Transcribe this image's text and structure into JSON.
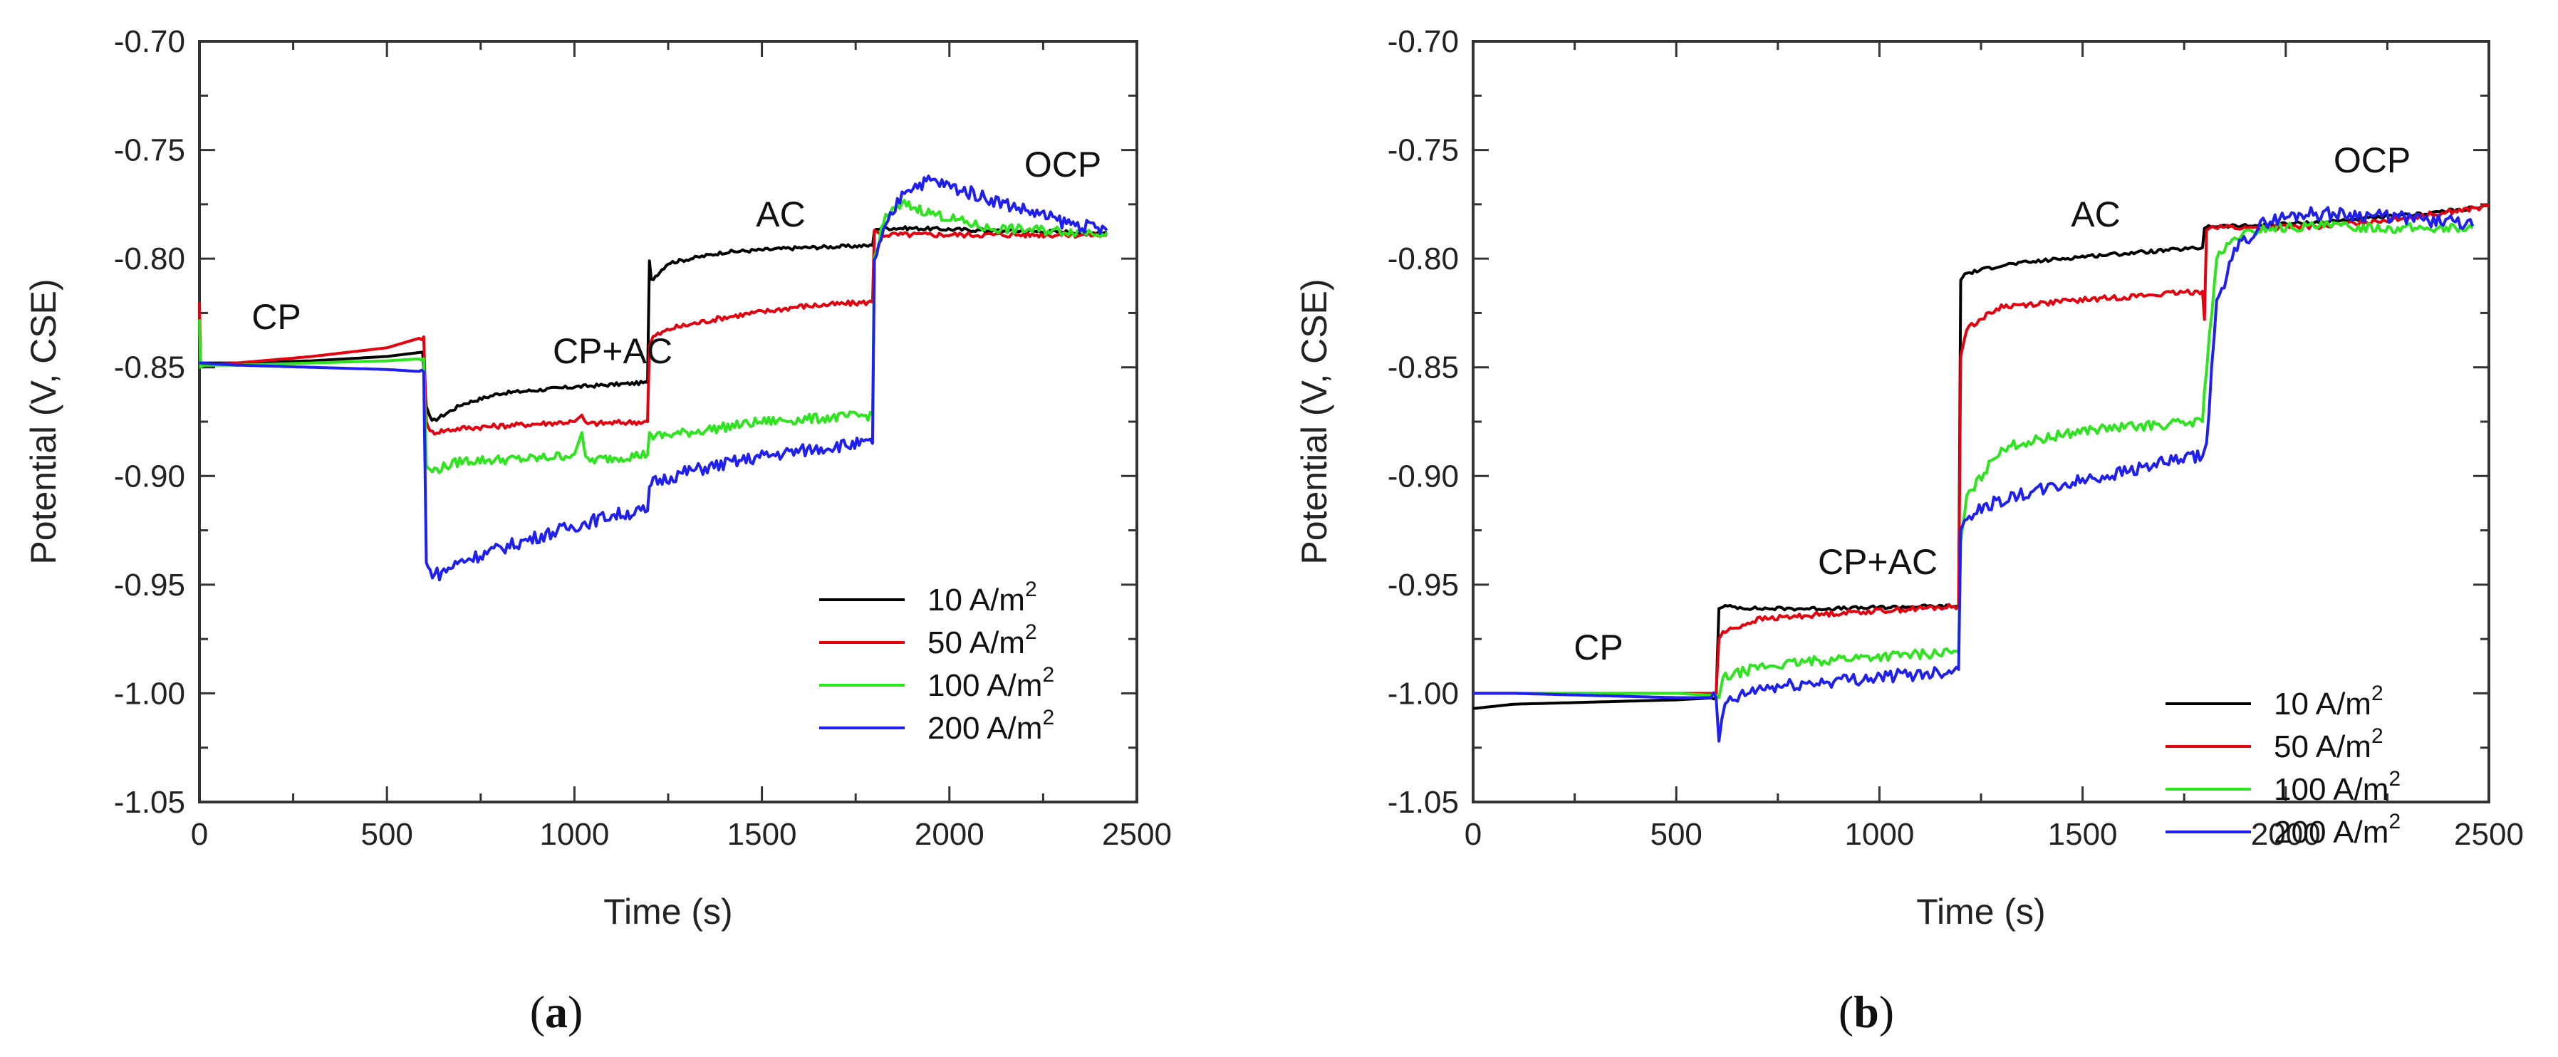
{
  "chart_data": [
    {
      "type": "line",
      "panel": "a",
      "panel_label": {
        "open": "(",
        "letter": "a",
        "close": ")"
      },
      "xlabel": "Time (s)",
      "ylabel": "Potential (V, CSE)",
      "xlim": [
        0,
        2500
      ],
      "ylim": [
        -1.05,
        -0.7
      ],
      "xticks": [
        0,
        500,
        1000,
        1500,
        2000,
        2500
      ],
      "xtick_labels": [
        "0",
        "500",
        "1000",
        "1500",
        "2000",
        "2500"
      ],
      "yticks": [
        -0.7,
        -0.75,
        -0.8,
        -0.85,
        -0.9,
        -0.95,
        -1.0,
        -1.05
      ],
      "ytick_labels": [
        "-0.70",
        "-0.75",
        "-0.80",
        "-0.85",
        "-0.90",
        "-0.95",
        "-1.00",
        "-1.05"
      ],
      "annotations": [
        {
          "text": "CP",
          "x": 300,
          "y": -0.828
        },
        {
          "text": "CP+AC",
          "x": 900,
          "y": -0.845
        },
        {
          "text": "AC",
          "x": 1500,
          "y": -0.774
        },
        {
          "text": "OCP",
          "x": 2050,
          "y": -0.757
        }
      ],
      "legend": {
        "position": "bottom-right",
        "superscript": "2"
      },
      "series": [
        {
          "name": "10 A/m",
          "color": "#000000",
          "x": [
            0,
            100,
            300,
            500,
            595,
            605,
            620,
            700,
            800,
            1000,
            1195,
            1200,
            1205,
            1250,
            1400,
            1600,
            1795,
            1800,
            1810,
            1900,
            2100,
            2420
          ],
          "y": [
            -0.848,
            -0.848,
            -0.847,
            -0.845,
            -0.843,
            -0.868,
            -0.875,
            -0.867,
            -0.862,
            -0.859,
            -0.857,
            -0.801,
            -0.81,
            -0.802,
            -0.797,
            -0.795,
            -0.794,
            -0.787,
            -0.786,
            -0.786,
            -0.787,
            -0.788
          ]
        },
        {
          "name": "50 A/m",
          "color": "#e3000f",
          "x": [
            0,
            3,
            10,
            100,
            300,
            500,
            598,
            605,
            615,
            700,
            900,
            1000,
            1020,
            1030,
            1195,
            1200,
            1210,
            1260,
            1400,
            1600,
            1795,
            1800,
            1820,
            1900,
            2100,
            2420
          ],
          "y": [
            -0.82,
            -0.848,
            -0.849,
            -0.848,
            -0.845,
            -0.841,
            -0.836,
            -0.875,
            -0.88,
            -0.878,
            -0.876,
            -0.875,
            -0.872,
            -0.876,
            -0.875,
            -0.84,
            -0.836,
            -0.832,
            -0.827,
            -0.822,
            -0.82,
            -0.787,
            -0.789,
            -0.789,
            -0.789,
            -0.789
          ]
        },
        {
          "name": "100 A/m",
          "color": "#2de41f",
          "x": [
            0,
            3,
            10,
            100,
            300,
            500,
            598,
            605,
            615,
            700,
            900,
            1000,
            1020,
            1030,
            1195,
            1200,
            1210,
            1300,
            1500,
            1795,
            1800,
            1830,
            1880,
            1950,
            2100,
            2420
          ],
          "y": [
            -0.828,
            -0.85,
            -0.849,
            -0.849,
            -0.848,
            -0.847,
            -0.846,
            -0.895,
            -0.898,
            -0.893,
            -0.892,
            -0.89,
            -0.88,
            -0.893,
            -0.89,
            -0.88,
            -0.882,
            -0.88,
            -0.875,
            -0.872,
            -0.8,
            -0.78,
            -0.775,
            -0.779,
            -0.786,
            -0.788
          ]
        },
        {
          "name": "200 A/m",
          "color": "#1f1ff0",
          "x": [
            0,
            100,
            300,
            500,
            598,
            605,
            615,
            640,
            700,
            900,
            1100,
            1195,
            1200,
            1210,
            1300,
            1500,
            1700,
            1795,
            1800,
            1830,
            1880,
            1950,
            2100,
            2300,
            2420
          ],
          "y": [
            -0.848,
            -0.849,
            -0.85,
            -0.851,
            -0.852,
            -0.94,
            -0.944,
            -0.945,
            -0.939,
            -0.928,
            -0.918,
            -0.916,
            -0.905,
            -0.903,
            -0.898,
            -0.891,
            -0.886,
            -0.885,
            -0.8,
            -0.786,
            -0.768,
            -0.764,
            -0.772,
            -0.783,
            -0.787
          ]
        }
      ]
    },
    {
      "type": "line",
      "panel": "b",
      "panel_label": {
        "open": "(",
        "letter": "b",
        "close": ")"
      },
      "xlabel": "Time (s)",
      "ylabel": "Potential (V, CSE)",
      "xlim": [
        0,
        2500
      ],
      "ylim": [
        -1.05,
        -0.7
      ],
      "xticks": [
        0,
        500,
        1000,
        1500,
        2000,
        2500
      ],
      "xtick_labels": [
        "0",
        "500",
        "1000",
        "1500",
        "2000",
        "2500"
      ],
      "yticks": [
        -0.7,
        -0.75,
        -0.8,
        -0.85,
        -0.9,
        -0.95,
        -1.0,
        -1.05
      ],
      "ytick_labels": [
        "-0.70",
        "-0.75",
        "-0.80",
        "-0.85",
        "-0.90",
        "-0.95",
        "-1.00",
        "-1.05"
      ],
      "annotations": [
        {
          "text": "CP",
          "x": 300,
          "y": -0.986
        },
        {
          "text": "CP+AC",
          "x": 900,
          "y": -0.954
        },
        {
          "text": "AC",
          "x": 1530,
          "y": -0.778
        },
        {
          "text": "OCP",
          "x": 2120,
          "y": -0.76
        }
      ],
      "legend": {
        "position": "bottom-right",
        "superscript": "2"
      },
      "series": [
        {
          "name": "10 A/m",
          "color": "#000000",
          "x": [
            0,
            100,
            300,
            500,
            598,
            605,
            620,
            700,
            900,
            1100,
            1195,
            1200,
            1210,
            1300,
            1500,
            1795,
            1800,
            1810,
            1900,
            2100,
            2300,
            2500
          ],
          "y": [
            -1.007,
            -1.005,
            -1.004,
            -1.003,
            -1.002,
            -0.961,
            -0.96,
            -0.961,
            -0.961,
            -0.96,
            -0.96,
            -0.81,
            -0.807,
            -0.803,
            -0.799,
            -0.795,
            -0.786,
            -0.785,
            -0.785,
            -0.783,
            -0.78,
            -0.776
          ]
        },
        {
          "name": "50 A/m",
          "color": "#e3000f",
          "x": [
            0,
            100,
            300,
            500,
            598,
            605,
            615,
            700,
            900,
            1100,
            1195,
            1200,
            1215,
            1300,
            1500,
            1795,
            1800,
            1805,
            1820,
            1900,
            2100,
            2300,
            2500
          ],
          "y": [
            -1.0,
            -1.0,
            -1.0,
            -1.0,
            -1.0,
            -0.975,
            -0.972,
            -0.966,
            -0.963,
            -0.961,
            -0.96,
            -0.845,
            -0.832,
            -0.822,
            -0.819,
            -0.815,
            -0.828,
            -0.787,
            -0.785,
            -0.786,
            -0.785,
            -0.781,
            -0.776
          ]
        },
        {
          "name": "100 A/m",
          "color": "#2de41f",
          "x": [
            0,
            100,
            300,
            500,
            598,
            605,
            615,
            700,
            900,
            1100,
            1195,
            1200,
            1215,
            1300,
            1500,
            1795,
            1800,
            1830,
            1880,
            1950,
            2100,
            2300,
            2460
          ],
          "y": [
            -1.0,
            -1.0,
            -1.0,
            -1.0,
            -1.001,
            -1.002,
            -0.993,
            -0.988,
            -0.984,
            -0.982,
            -0.981,
            -0.93,
            -0.91,
            -0.887,
            -0.879,
            -0.875,
            -0.86,
            -0.8,
            -0.79,
            -0.786,
            -0.785,
            -0.786,
            -0.786
          ]
        },
        {
          "name": "200 A/m",
          "color": "#1f1ff0",
          "x": [
            0,
            100,
            300,
            500,
            598,
            605,
            612,
            620,
            700,
            900,
            1100,
            1195,
            1200,
            1215,
            1300,
            1500,
            1700,
            1795,
            1805,
            1830,
            1880,
            1950,
            2050,
            2200,
            2400,
            2460
          ],
          "y": [
            -1.0,
            -1.0,
            -1.001,
            -1.002,
            -1.002,
            -1.022,
            -1.012,
            -1.005,
            -0.998,
            -0.994,
            -0.991,
            -0.989,
            -0.925,
            -0.918,
            -0.911,
            -0.902,
            -0.894,
            -0.891,
            -0.885,
            -0.82,
            -0.795,
            -0.783,
            -0.779,
            -0.78,
            -0.783,
            -0.785
          ]
        }
      ]
    }
  ]
}
